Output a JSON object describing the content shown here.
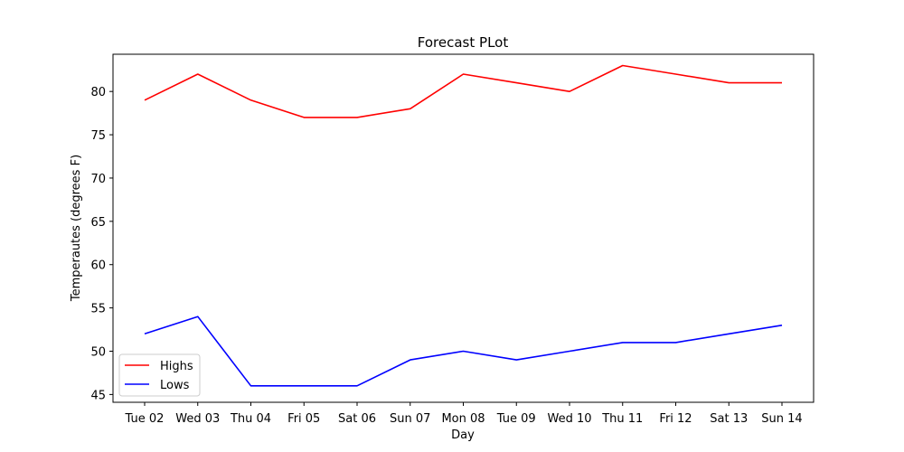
{
  "chart_data": {
    "type": "line",
    "title": "Forecast PLot",
    "xlabel": "Day",
    "ylabel": "Temperautes (degrees F)",
    "categories": [
      "Tue 02",
      "Wed 03",
      "Thu 04",
      "Fri 05",
      "Sat 06",
      "Sun 07",
      "Mon 08",
      "Tue 09",
      "Wed 10",
      "Thu 11",
      "Fri 12",
      "Sat 13",
      "Sun 14"
    ],
    "ylim": [
      44.1,
      84.3
    ],
    "yticks": [
      45,
      50,
      55,
      60,
      65,
      70,
      75,
      80
    ],
    "grid": false,
    "legend_position": "lower-left",
    "series": [
      {
        "name": "Highs",
        "color": "#ff0000",
        "values": [
          79,
          82,
          79,
          77,
          77,
          78,
          82,
          81,
          80,
          83,
          82,
          81,
          81
        ]
      },
      {
        "name": "Lows",
        "color": "#0000ff",
        "values": [
          52,
          54,
          46,
          46,
          46,
          49,
          50,
          49,
          50,
          51,
          51,
          52,
          53
        ]
      }
    ]
  }
}
